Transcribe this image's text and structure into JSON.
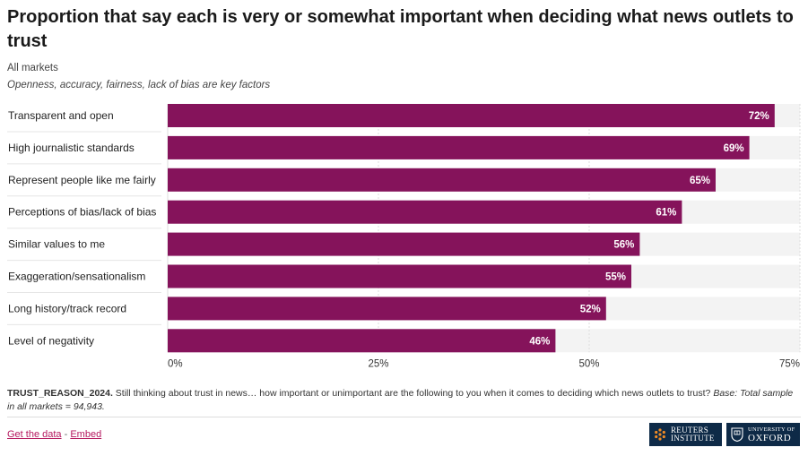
{
  "chart_data": {
    "type": "bar",
    "orientation": "horizontal",
    "title": "Proportion that say each is very or somewhat important when deciding what news outlets to trust",
    "subtitle": "All markets",
    "note": "Openness, accuracy, fairness, lack of bias are key factors",
    "categories": [
      "Transparent and open",
      "High journalistic standards",
      "Represent people like me fairly",
      "Perceptions of bias/lack of bias",
      "Similar values to me",
      "Exaggeration/sensationalism",
      "Long history/track record",
      "Level of negativity"
    ],
    "values": [
      72,
      69,
      65,
      61,
      56,
      55,
      52,
      46
    ],
    "value_labels": [
      "72%",
      "69%",
      "65%",
      "61%",
      "56%",
      "55%",
      "52%",
      "46%"
    ],
    "xlim": [
      0,
      75
    ],
    "xticks": [
      0,
      25,
      50,
      75
    ],
    "xtick_labels": [
      "0%",
      "25%",
      "50%",
      "75%"
    ],
    "xlabel": "",
    "ylabel": "",
    "bar_color": "#85135b",
    "background_bar_color": "#f3f3f3",
    "grid": true
  },
  "footnote": {
    "source_id": "TRUST_REASON_2024.",
    "text": "Still thinking about trust in news… how important or unimportant are the following to you when it comes to deciding which news outlets to trust?",
    "base_label": "Base:",
    "base_text": "Total sample in all markets = 94,943."
  },
  "links": {
    "get_data": "Get the data",
    "separator": " - ",
    "embed": "Embed"
  },
  "logos": {
    "reuters": {
      "line1": "REUTERS",
      "line2": "INSTITUTE"
    },
    "oxford": {
      "line1": "UNIVERSITY OF",
      "line2": "OXFORD"
    }
  }
}
